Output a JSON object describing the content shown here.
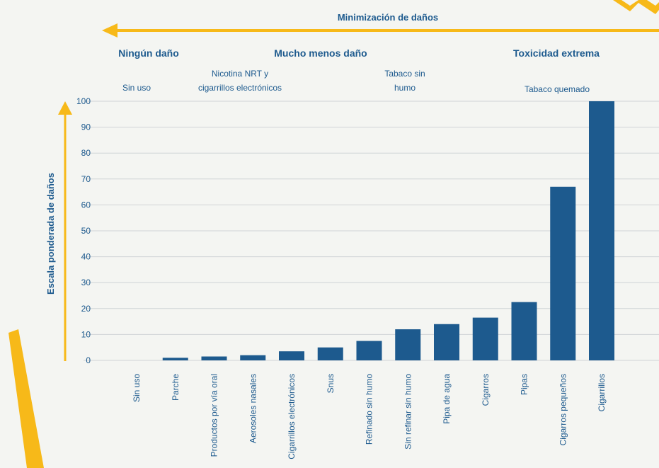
{
  "header": {
    "top_label": "Minimización de daños",
    "categories": [
      {
        "title": "Ningún daño",
        "subtitle_lines": [
          "Sin uso"
        ]
      },
      {
        "title": "Mucho menos daño",
        "subtitle_lines": [
          "Nicotina NRT y",
          "cigarrillos electrónicos"
        ]
      },
      {
        "title": "",
        "subtitle_lines": [
          "Tabaco sin",
          "humo"
        ]
      },
      {
        "title": "Toxicidad extrema",
        "subtitle_lines": [
          "Tabaco quemado"
        ]
      }
    ]
  },
  "chart_data": {
    "type": "bar",
    "ylabel": "Escala ponderada de daños",
    "ylim": [
      0,
      100
    ],
    "yticks": [
      0,
      10,
      20,
      30,
      40,
      50,
      60,
      70,
      80,
      90,
      100
    ],
    "grid": true,
    "categories": [
      "Sin uso",
      "Parche",
      "Productos por vía oral",
      "Aerosoles nasales",
      "Cigarrillos electrónicos",
      "Snus",
      "Refinado sin humo",
      "Sin refinar sin humo",
      "Pipa de agua",
      "Cigarros",
      "Pipas",
      "Cigarros pequeños",
      "Cigarrillos"
    ],
    "values": [
      0,
      1,
      1.5,
      2,
      3.5,
      5,
      7.5,
      12,
      14,
      16.5,
      22.5,
      67,
      100
    ],
    "bar_color": "#1d5a8e"
  },
  "colors": {
    "accent": "#f7b919",
    "text": "#1d5a8e",
    "gridline": "#cfd3d6",
    "background": "#f4f5f2"
  }
}
